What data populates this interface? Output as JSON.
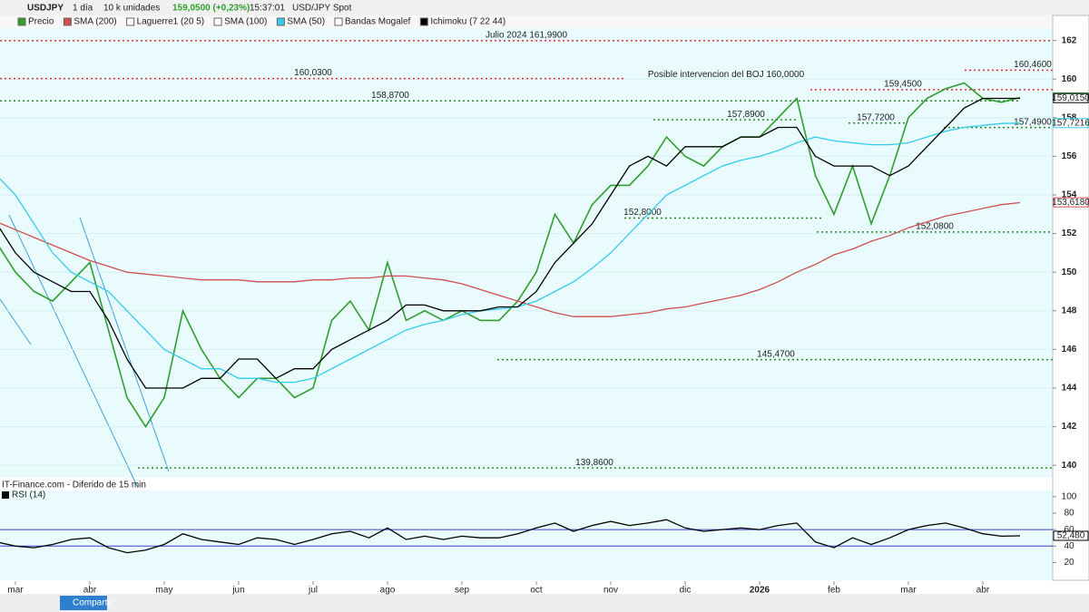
{
  "toolbar": {
    "symbol": "USDJPY",
    "timeframe": "1 día",
    "units": "10 k unidades",
    "price": "159,0500 (+0,23%)",
    "time": "15:37:01",
    "instrument": "USD/JPY Spot",
    "source": "IT-Finance.com - Diferido de 15 min",
    "share": "Compartir"
  },
  "chart_data": [
    {
      "type": "line",
      "categories": [
        null,
        "mar",
        null,
        null,
        null,
        "abr",
        null,
        null,
        null,
        "may",
        null,
        null,
        null,
        "jun",
        null,
        null,
        null,
        "jul",
        null,
        null,
        null,
        "ago",
        null,
        null,
        null,
        "sep",
        null,
        null,
        null,
        "oct",
        null,
        null,
        null,
        "nov",
        null,
        null,
        null,
        "dic",
        null,
        null,
        null,
        "2026",
        null,
        null,
        null,
        "feb",
        null,
        null,
        null,
        "mar",
        null,
        null,
        null,
        "abr",
        null,
        null
      ],
      "series": [
        {
          "name": "Precio",
          "color": "#2e9e2e",
          "values": [
            151.5,
            150,
            149,
            148.5,
            149.5,
            150.5,
            147,
            143.5,
            142,
            143.5,
            148,
            146,
            144.5,
            143.5,
            144.5,
            144.5,
            143.5,
            144,
            147.5,
            148.5,
            147,
            150.5,
            147.5,
            148,
            147.5,
            148,
            147.5,
            147.5,
            148.5,
            150,
            153,
            151.5,
            153.5,
            154.5,
            154.5,
            155.5,
            157,
            156,
            155.5,
            156.5,
            157,
            157,
            158,
            159,
            155,
            153,
            155.5,
            152.5,
            155,
            158,
            159,
            159.5,
            159.8,
            159,
            158.8,
            159.05
          ]
        },
        {
          "name": "SMA (200)",
          "color": "#d05050",
          "values": [
            152.6,
            152.2,
            151.8,
            151.4,
            151,
            150.6,
            150.3,
            150,
            149.9,
            149.8,
            149.7,
            149.6,
            149.6,
            149.6,
            149.5,
            149.5,
            149.5,
            149.6,
            149.6,
            149.7,
            149.7,
            149.8,
            149.8,
            149.7,
            149.6,
            149.4,
            149.1,
            148.8,
            148.5,
            148.2,
            147.9,
            147.7,
            147.7,
            147.7,
            147.8,
            147.9,
            148.1,
            148.2,
            148.4,
            148.6,
            148.8,
            149.1,
            149.5,
            150,
            150.4,
            150.9,
            151.2,
            151.6,
            151.9,
            152.3,
            152.6,
            152.9,
            153.1,
            153.3,
            153.5,
            153.6
          ]
        },
        {
          "name": "Laguerre1 (20 5)",
          "active": false
        },
        {
          "name": "SMA (100)",
          "active": false
        },
        {
          "name": "SMA (50)",
          "color": "#33ccee",
          "values": [
            155,
            154,
            152.5,
            151,
            150,
            149.5,
            149,
            148,
            147,
            146,
            145.5,
            145,
            145,
            144.5,
            144.5,
            144.3,
            144.3,
            144.5,
            145,
            145.5,
            146,
            146.5,
            147,
            147.3,
            147.5,
            147.8,
            148,
            148.1,
            148.2,
            148.5,
            149,
            149.5,
            150.2,
            151,
            152,
            153,
            154,
            154.5,
            155,
            155.5,
            155.8,
            156,
            156.3,
            156.7,
            157,
            156.8,
            156.7,
            156.6,
            156.6,
            156.7,
            157,
            157.3,
            157.5,
            157.6,
            157.7,
            157.72
          ]
        },
        {
          "name": "Bandas Mogalef",
          "active": false
        },
        {
          "name": "Ichimoku (7 22 44)",
          "color": "#000000",
          "values": [
            152.5,
            151,
            150,
            149.5,
            149,
            149,
            147.5,
            145.5,
            144,
            144,
            144,
            144.5,
            144.5,
            145.5,
            145.5,
            144.5,
            145,
            145,
            146,
            146.5,
            147,
            147.5,
            148.3,
            148.3,
            148,
            148,
            148,
            148.2,
            148.2,
            149,
            150.5,
            151.5,
            152.5,
            154,
            155.5,
            156,
            155.5,
            156.5,
            156.5,
            156.5,
            157,
            157,
            157.5,
            157.5,
            156,
            155.5,
            155.5,
            155.5,
            155,
            155.5,
            156.5,
            157.5,
            158.5,
            159,
            159,
            159
          ]
        }
      ],
      "ylim": [
        139.35,
        162.64
      ],
      "yticks": [
        140,
        142,
        144,
        146,
        148,
        150,
        152,
        154,
        156,
        158,
        160,
        162
      ],
      "grid": true,
      "levels": [
        {
          "value": 161.99,
          "label": "Julio 2024 161,9900",
          "color": "#e03030"
        },
        {
          "value": 160.03,
          "label": "160,0300",
          "color": "#e03030"
        },
        {
          "value": 160.46,
          "label": "160,4600",
          "color": "#e03030"
        },
        {
          "value": 159.45,
          "label": "159,4500",
          "color": "#e03030"
        },
        {
          "value": 158.87,
          "label": "158,8700",
          "color": "#2a8a2a"
        },
        {
          "value": 157.89,
          "label": "157,8900",
          "color": "#2a8a2a"
        },
        {
          "value": 157.72,
          "label": "157,7200",
          "color": "#2a8a2a"
        },
        {
          "value": 157.49,
          "label": "157,4900",
          "color": "#2a8a2a"
        },
        {
          "value": 152.8,
          "label": "152,8000",
          "color": "#2a8a2a"
        },
        {
          "value": 152.08,
          "label": "152,0800",
          "color": "#2a8a2a"
        },
        {
          "value": 145.47,
          "label": "145,4700",
          "color": "#2a8a2a"
        },
        {
          "value": 139.86,
          "label": "139,8600",
          "color": "#2a8a2a"
        }
      ],
      "annotations": [
        {
          "value": 160,
          "label": "Posible intervencion del BOJ 160,0000",
          "color": "#e03030"
        }
      ],
      "price_tags": [
        {
          "value": 159.05,
          "label": "159,0500",
          "color": "#2e9e2e"
        },
        {
          "value": 159.015,
          "label": "159,0150",
          "color": "#000000"
        },
        {
          "value": 157.7216,
          "label": "157,7216",
          "color": "#33ccee"
        },
        {
          "value": 153.618,
          "label": "153,6180",
          "color": "#d05050"
        }
      ]
    },
    {
      "type": "line",
      "series": [
        {
          "name": "RSI (14)",
          "color": "#000000",
          "values": [
            45,
            40,
            38,
            42,
            48,
            50,
            38,
            32,
            35,
            42,
            55,
            48,
            45,
            42,
            50,
            48,
            42,
            48,
            55,
            58,
            50,
            62,
            48,
            52,
            48,
            52,
            50,
            50,
            55,
            62,
            68,
            58,
            65,
            70,
            65,
            68,
            72,
            62,
            58,
            60,
            62,
            60,
            65,
            68,
            45,
            38,
            50,
            42,
            50,
            60,
            65,
            68,
            62,
            55,
            52,
            52.48
          ]
        }
      ],
      "ylim": [
        -1.5,
        107.5
      ],
      "yticks": [
        20,
        40,
        60,
        80,
        100
      ],
      "bands": [
        40,
        60
      ],
      "price_tags": [
        {
          "value": 52.48,
          "label": "52,480",
          "color": "#000000"
        }
      ]
    }
  ]
}
